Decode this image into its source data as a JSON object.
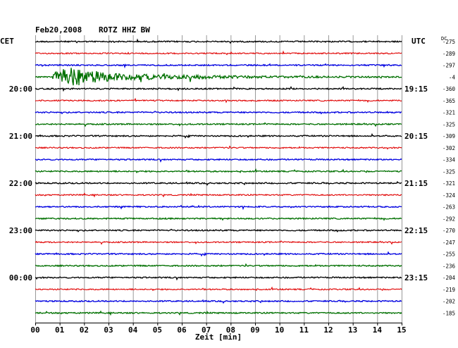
{
  "header": {
    "date": "Feb20,2008",
    "station": "ROTZ HHZ BW"
  },
  "left_zone": "CET",
  "right_zone": "UTC",
  "dc_label": "DC",
  "chart_data": {
    "type": "line",
    "title": "Feb20,2008   ROTZ HHZ BW",
    "xlabel": "Zeit [min]",
    "x_ticks": [
      "00",
      "01",
      "02",
      "03",
      "04",
      "05",
      "06",
      "07",
      "08",
      "09",
      "10",
      "11",
      "12",
      "13",
      "14",
      "15"
    ],
    "xlim": [
      0,
      15
    ],
    "grid": true,
    "left_hour_labels": [
      "20:00",
      "21:00",
      "22:00",
      "23:00",
      "00:00"
    ],
    "right_hour_labels": [
      "19:15",
      "20:15",
      "21:15",
      "22:15",
      "23:15"
    ],
    "trace_colors": [
      "#000000",
      "#e00000",
      "#0000e0",
      "#007000"
    ],
    "dc_offsets": [
      "-275",
      "-289",
      "-297",
      "-4",
      "-360",
      "-365",
      "-321",
      "-325",
      "-309",
      "-302",
      "-334",
      "-325",
      "-321",
      "-324",
      "-263",
      "-292",
      "-270",
      "-247",
      "-255",
      "-236",
      "-204",
      "-219",
      "-202",
      "-185"
    ],
    "event": {
      "trace": 3,
      "start_min": 0.7,
      "peak_min": 1.0,
      "end_min": 6.0
    }
  }
}
